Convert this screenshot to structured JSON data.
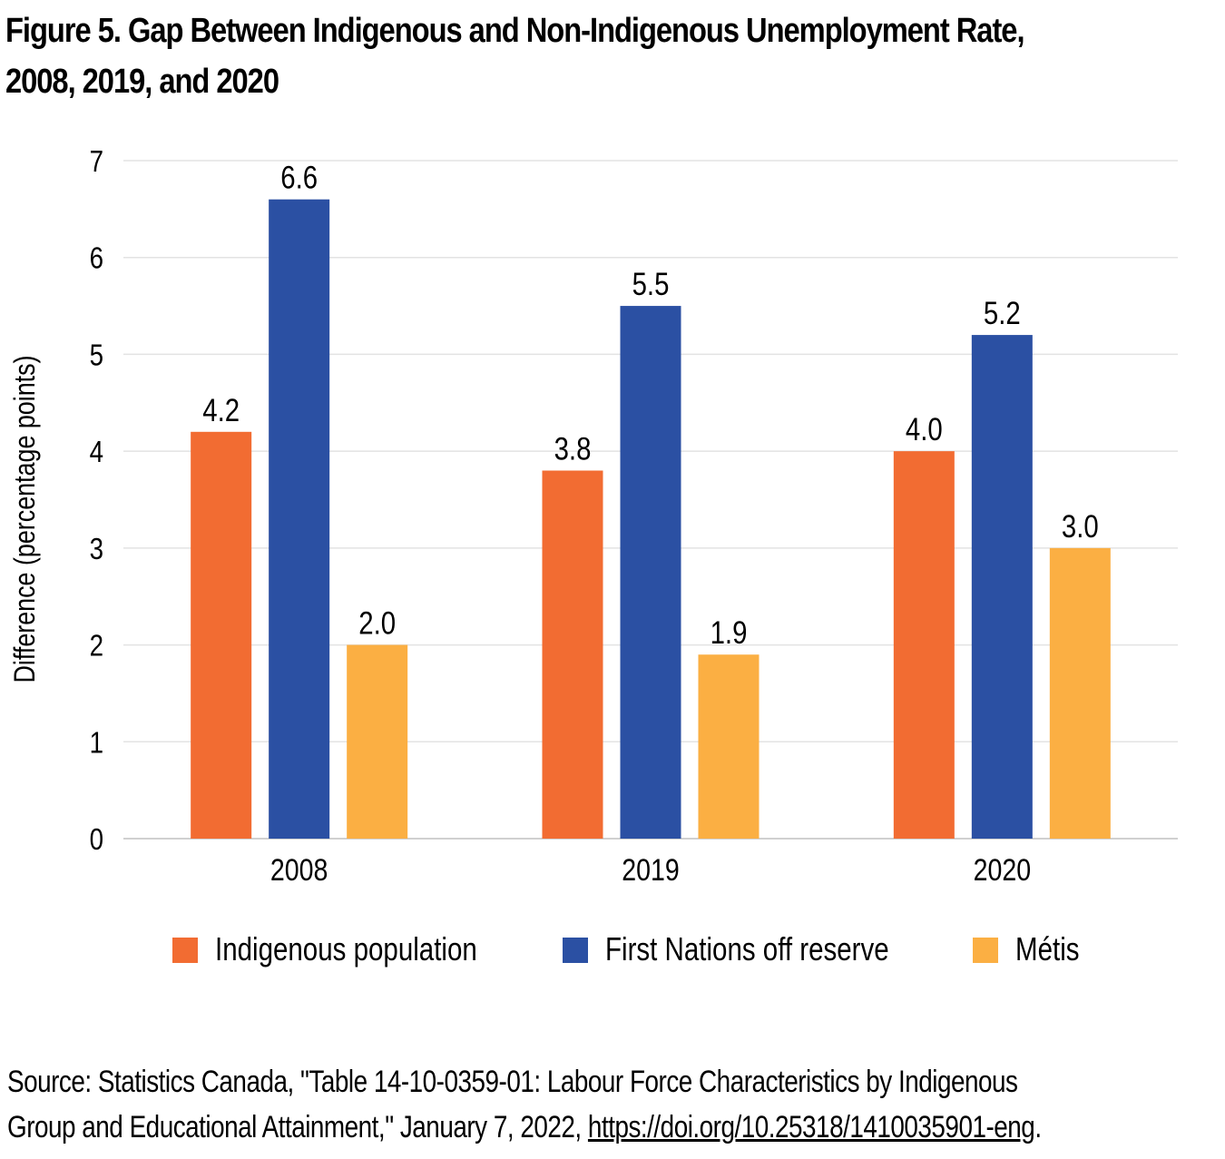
{
  "title": {
    "line1": "Figure 5. Gap Between Indigenous and Non-Indigenous Unemployment Rate,",
    "line2": "2008, 2019, and 2020"
  },
  "chart_data": {
    "type": "bar",
    "title": "Figure 5. Gap Between Indigenous and Non-Indigenous Unemployment Rate, 2008, 2019, and 2020",
    "xlabel": "",
    "ylabel": "Difference (percentage points)",
    "ylim": [
      0,
      7
    ],
    "yticks": [
      0,
      1,
      2,
      3,
      4,
      5,
      6,
      7
    ],
    "categories": [
      "2008",
      "2019",
      "2020"
    ],
    "series": [
      {
        "name": "Indigenous population",
        "color": "#F26C32",
        "values": [
          4.2,
          3.8,
          4.0
        ],
        "labels": [
          "4.2",
          "3.8",
          "4.0"
        ]
      },
      {
        "name": "First Nations off reserve",
        "color": "#2B50A3",
        "values": [
          6.6,
          5.5,
          5.2
        ],
        "labels": [
          "6.6",
          "5.5",
          "5.2"
        ]
      },
      {
        "name": "Métis",
        "color": "#FBAF43",
        "values": [
          2.0,
          1.9,
          3.0
        ],
        "labels": [
          "2.0",
          "1.9",
          "3.0"
        ]
      }
    ],
    "grid": true,
    "legend": "bottom"
  },
  "source": {
    "line1": "Source: Statistics Canada, \"Table 14-10-0359-01: Labour Force Characteristics by Indigenous",
    "line2_prefix": "Group and Educational Attainment,\" January 7, 2022, ",
    "link": "https://doi.org/10.25318/1410035901-eng",
    "line2_suffix": "."
  }
}
